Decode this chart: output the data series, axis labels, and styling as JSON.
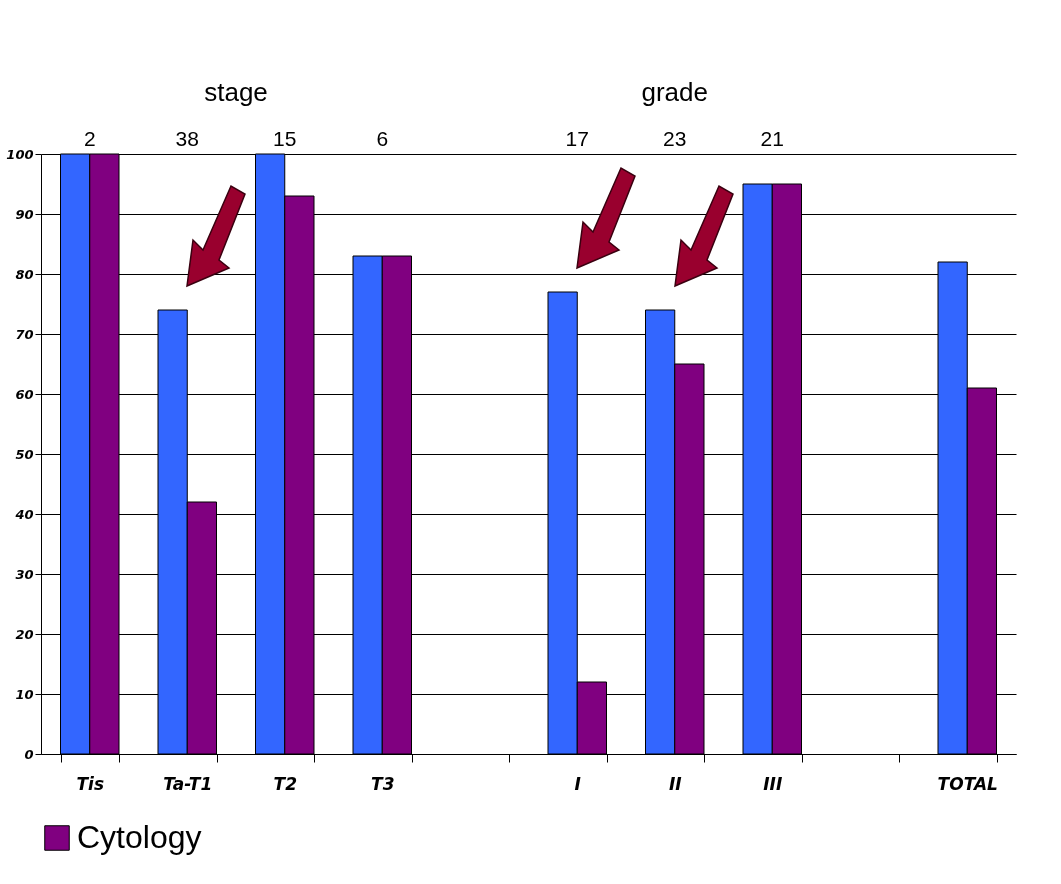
{
  "chart_data": {
    "type": "bar",
    "categories": [
      "Tis",
      "Ta-T1",
      "T2",
      "T3",
      null,
      "I",
      "II",
      "III",
      null,
      "TOTAL"
    ],
    "series": [
      {
        "color": "#3366ff",
        "values": [
          100,
          74,
          100,
          83,
          null,
          77,
          74,
          95,
          null,
          82
        ]
      },
      {
        "name": "Cytology",
        "color": "#800080",
        "values": [
          100,
          42,
          93,
          83,
          null,
          12,
          65,
          95,
          null,
          61
        ]
      }
    ],
    "ylim": [
      0,
      100
    ],
    "yticks": [
      0,
      10,
      20,
      30,
      40,
      50,
      60,
      70,
      80,
      90,
      100
    ],
    "grid": "y",
    "legend": "bottom",
    "annotations": [
      "stage",
      "grade",
      "2",
      "38",
      "15",
      "6",
      "17",
      "23",
      "21"
    ]
  }
}
